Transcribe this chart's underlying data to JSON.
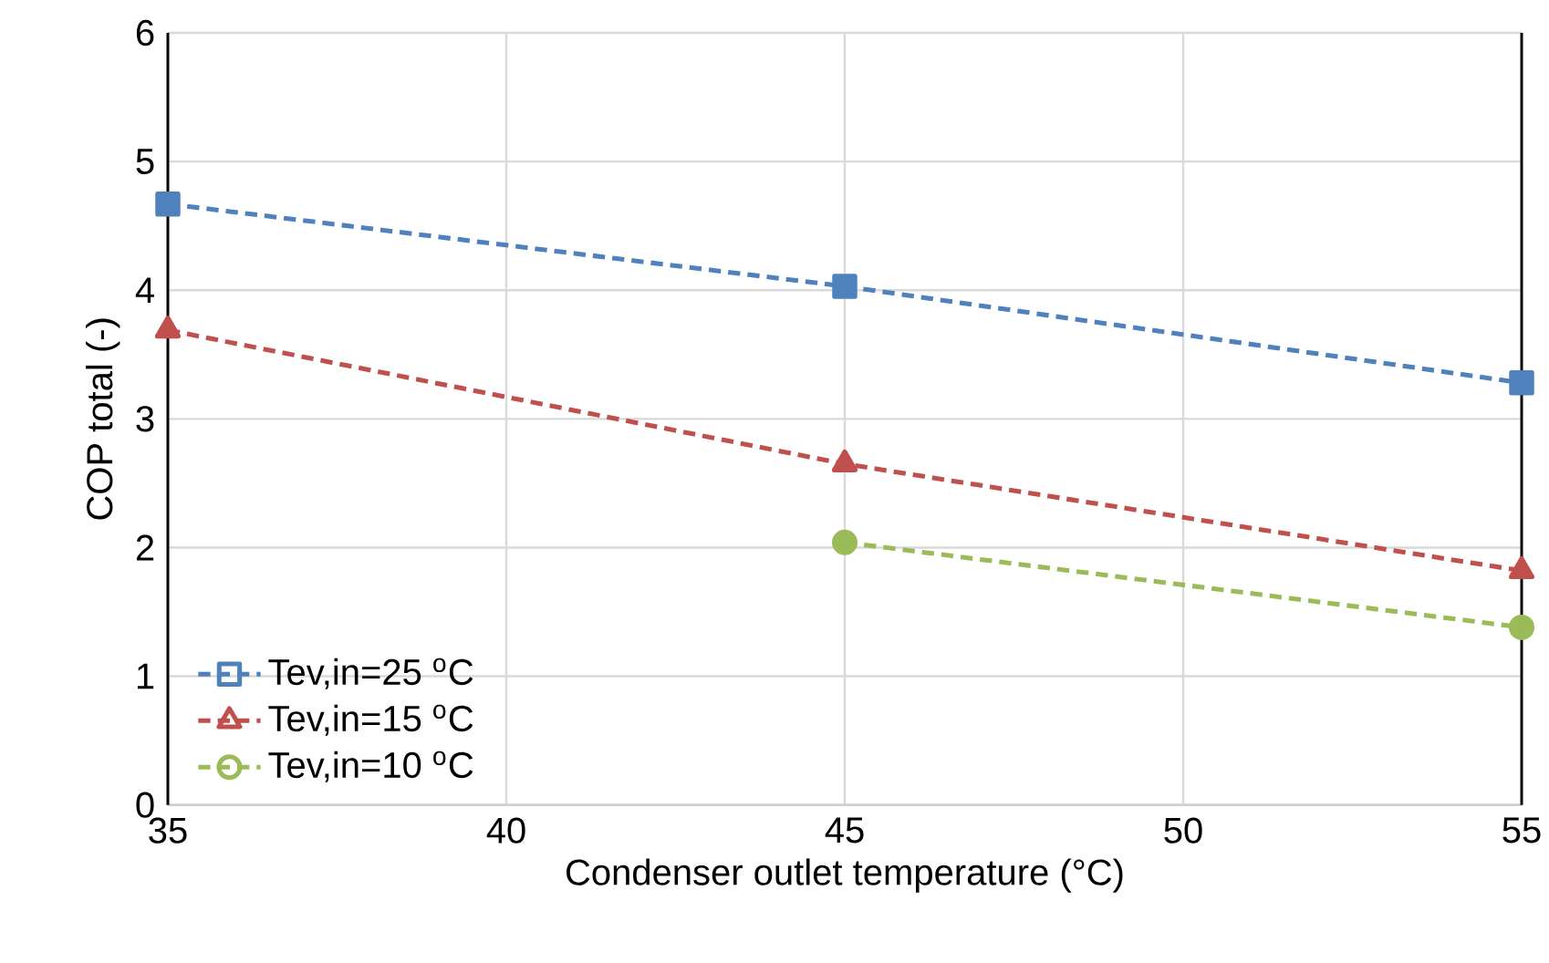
{
  "chart_data": {
    "type": "line",
    "xlabel": "Condenser outlet temperature (°C)",
    "ylabel": "COP total (-)",
    "xlim": [
      35,
      55
    ],
    "xticks": [
      35,
      40,
      45,
      50,
      55
    ],
    "ylim": [
      0,
      6
    ],
    "yticks": [
      0,
      1,
      2,
      3,
      4,
      5,
      6
    ],
    "grid": true,
    "legend": "bottom left",
    "line_style": "dashed",
    "series": [
      {
        "name": "Tev,in=25 $^{o}$C",
        "color": "#4f81bd",
        "marker": "square",
        "x": [
          35,
          45,
          55
        ],
        "values": [
          4.67,
          4.03,
          3.28
        ]
      },
      {
        "name": "Tev,in=15 $^{o}$C",
        "color": "#c0504d",
        "marker": "triangle",
        "x": [
          35,
          45,
          55
        ],
        "values": [
          3.69,
          2.65,
          1.82
        ]
      },
      {
        "name": "Tev,in=10 $^{o}$C",
        "color": "#9bbb59",
        "marker": "circle",
        "x": [
          45,
          55
        ],
        "values": [
          2.04,
          1.38
        ]
      }
    ]
  }
}
